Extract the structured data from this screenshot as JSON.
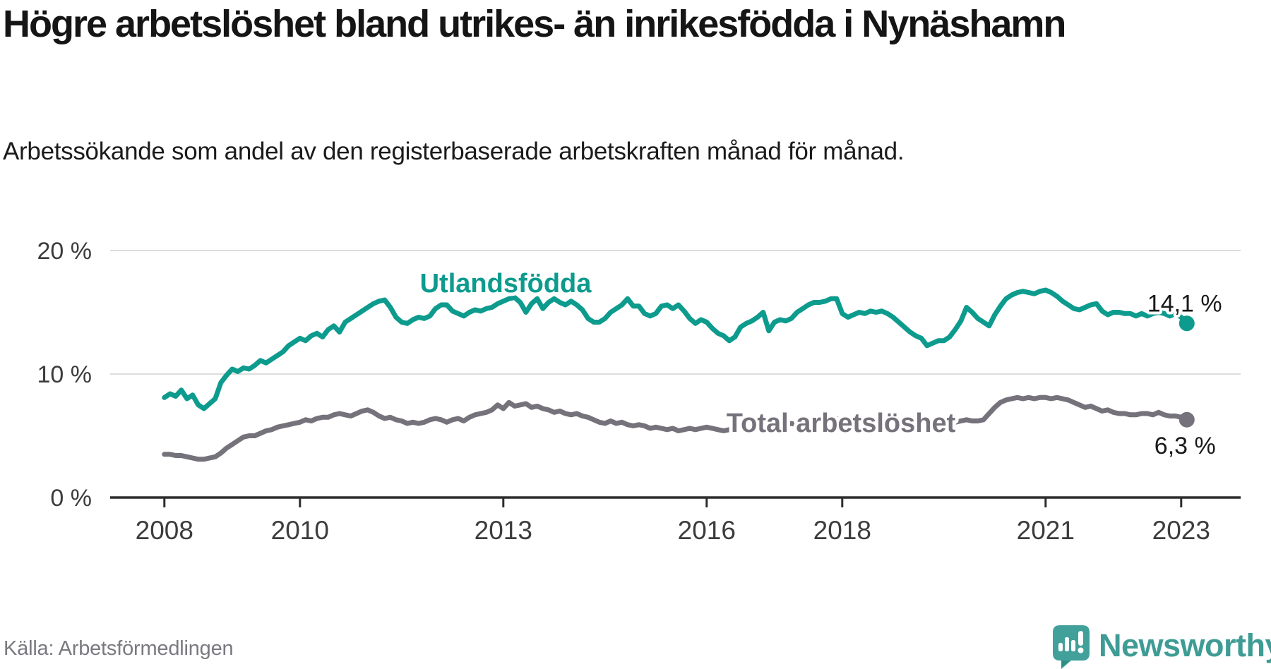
{
  "header": {
    "title": "Högre arbetslöshet bland utrikes- än inrikesfödda i Nynäshamn",
    "subtitle": "Arbetssökande som andel av den registerbaserade arbetskraften månad för månad."
  },
  "footer": {
    "source": "Källa: Arbetsförmedlingen",
    "brand": "Newsworthy"
  },
  "colors": {
    "foreign_born_line": "#0d9b8e",
    "total_line": "#75727b",
    "grid": "#dcdcdc",
    "axis": "#2d2d2d",
    "tick_text": "#3c3c3c",
    "brand_teal": "#3e9c95"
  },
  "chart_data": {
    "type": "line",
    "title": "Högre arbetslöshet bland utrikes- än inrikesfödda i Nynäshamn",
    "subtitle": "Arbetssökande som andel av den registerbaserade arbetskraften månad för månad.",
    "xlabel": "",
    "ylabel": "",
    "grid": "horizontal",
    "legend_position": "inline-labels",
    "xlim": [
      2007.2,
      2023.9
    ],
    "ylim": [
      0,
      21.4
    ],
    "x_ticks": [
      {
        "label": "2008",
        "year": 2008
      },
      {
        "label": "2010",
        "year": 2010
      },
      {
        "label": "2013",
        "year": 2013
      },
      {
        "label": "2016",
        "year": 2016
      },
      {
        "label": "2018",
        "year": 2018
      },
      {
        "label": "2021",
        "year": 2021
      },
      {
        "label": "2023",
        "year": 2023
      }
    ],
    "y_ticks": [
      {
        "label": "20 %",
        "value": 20
      },
      {
        "label": "10 %",
        "value": 10
      },
      {
        "label": "0 %",
        "value": 0
      }
    ],
    "x_unit": "monthly from January 2008 to February 2023",
    "series": [
      {
        "name": "Utlandsfödda",
        "color": "#0d9b8e",
        "start": "2008-01",
        "end": "2023-02",
        "end_label": "14,1 %",
        "end_value": 14.1,
        "values": [
          8.1,
          8.4,
          8.2,
          8.7,
          8.0,
          8.3,
          7.5,
          7.2,
          7.6,
          8.0,
          9.3,
          9.9,
          10.4,
          10.2,
          10.5,
          10.4,
          10.7,
          11.1,
          10.9,
          11.2,
          11.5,
          11.8,
          12.3,
          12.6,
          12.9,
          12.7,
          13.1,
          13.3,
          13.0,
          13.6,
          13.9,
          13.4,
          14.2,
          14.5,
          14.8,
          15.1,
          15.4,
          15.7,
          15.9,
          16.0,
          15.4,
          14.6,
          14.2,
          14.1,
          14.4,
          14.6,
          14.5,
          14.7,
          15.3,
          15.6,
          15.6,
          15.1,
          14.9,
          14.7,
          15.0,
          15.2,
          15.1,
          15.3,
          15.4,
          15.7,
          15.9,
          16.1,
          16.2,
          15.8,
          15.0,
          15.7,
          16.1,
          15.3,
          15.8,
          16.1,
          15.8,
          15.6,
          15.9,
          15.6,
          15.2,
          14.5,
          14.2,
          14.2,
          14.5,
          15.0,
          15.3,
          15.6,
          16.1,
          15.5,
          15.5,
          14.9,
          14.7,
          14.9,
          15.5,
          15.6,
          15.3,
          15.6,
          15.1,
          14.5,
          14.1,
          14.4,
          14.2,
          13.7,
          13.3,
          13.1,
          12.7,
          13.0,
          13.8,
          14.1,
          14.3,
          14.6,
          15.0,
          13.5,
          14.2,
          14.4,
          14.3,
          14.5,
          15.0,
          15.3,
          15.6,
          15.8,
          15.8,
          15.9,
          16.1,
          16.1,
          14.9,
          14.6,
          14.8,
          15.0,
          14.9,
          15.1,
          15.0,
          15.1,
          14.9,
          14.6,
          14.2,
          13.8,
          13.4,
          13.1,
          12.9,
          12.3,
          12.5,
          12.7,
          12.7,
          13.0,
          13.6,
          14.3,
          15.4,
          15.0,
          14.5,
          14.2,
          13.9,
          14.8,
          15.5,
          16.1,
          16.4,
          16.6,
          16.7,
          16.6,
          16.5,
          16.7,
          16.8,
          16.6,
          16.3,
          15.9,
          15.6,
          15.3,
          15.2,
          15.4,
          15.6,
          15.7,
          15.1,
          14.8,
          15.0,
          15.0,
          14.9,
          14.9,
          14.7,
          14.9,
          14.7,
          14.9,
          15.0,
          14.9,
          14.7,
          14.9,
          14.6,
          14.1
        ]
      },
      {
        "name": "Total arbetslöshet",
        "color": "#75727b",
        "start": "2008-01",
        "end": "2023-02",
        "end_label": "6,3 %",
        "end_value": 6.3,
        "values": [
          3.5,
          3.5,
          3.4,
          3.4,
          3.3,
          3.2,
          3.1,
          3.1,
          3.2,
          3.3,
          3.6,
          4.0,
          4.3,
          4.6,
          4.9,
          5.0,
          5.0,
          5.2,
          5.4,
          5.5,
          5.7,
          5.8,
          5.9,
          6.0,
          6.1,
          6.3,
          6.2,
          6.4,
          6.5,
          6.5,
          6.7,
          6.8,
          6.7,
          6.6,
          6.8,
          7.0,
          7.1,
          6.9,
          6.6,
          6.4,
          6.5,
          6.3,
          6.2,
          6.0,
          6.1,
          6.0,
          6.1,
          6.3,
          6.4,
          6.3,
          6.1,
          6.3,
          6.4,
          6.2,
          6.5,
          6.7,
          6.8,
          6.9,
          7.1,
          7.5,
          7.2,
          7.7,
          7.4,
          7.5,
          7.6,
          7.3,
          7.4,
          7.2,
          7.1,
          6.9,
          7.0,
          6.8,
          6.7,
          6.8,
          6.6,
          6.5,
          6.3,
          6.1,
          6.0,
          6.2,
          6.0,
          6.1,
          5.9,
          5.8,
          5.9,
          5.8,
          5.6,
          5.7,
          5.6,
          5.5,
          5.6,
          5.4,
          5.5,
          5.6,
          5.5,
          5.6,
          5.7,
          5.6,
          5.5,
          5.4,
          5.5,
          5.6,
          5.7,
          5.8,
          5.9,
          5.8,
          5.7,
          5.8,
          5.9,
          5.8,
          5.9,
          6.0,
          5.9,
          6.0,
          6.1,
          6.2,
          6.3,
          6.2,
          6.3,
          6.4,
          6.3,
          6.2,
          6.1,
          6.2,
          6.1,
          6.2,
          6.3,
          6.2,
          6.1,
          6.2,
          6.1,
          6.2,
          6.1,
          6.0,
          5.9,
          5.8,
          5.9,
          6.0,
          6.1,
          6.0,
          6.1,
          6.2,
          6.3,
          6.2,
          6.2,
          6.3,
          6.8,
          7.3,
          7.7,
          7.9,
          8.0,
          8.1,
          8.0,
          8.1,
          8.0,
          8.1,
          8.1,
          8.0,
          8.1,
          8.0,
          7.9,
          7.7,
          7.5,
          7.3,
          7.4,
          7.2,
          7.0,
          7.1,
          6.9,
          6.8,
          6.8,
          6.7,
          6.7,
          6.8,
          6.8,
          6.7,
          6.9,
          6.7,
          6.6,
          6.6,
          6.5,
          6.3
        ]
      }
    ]
  }
}
